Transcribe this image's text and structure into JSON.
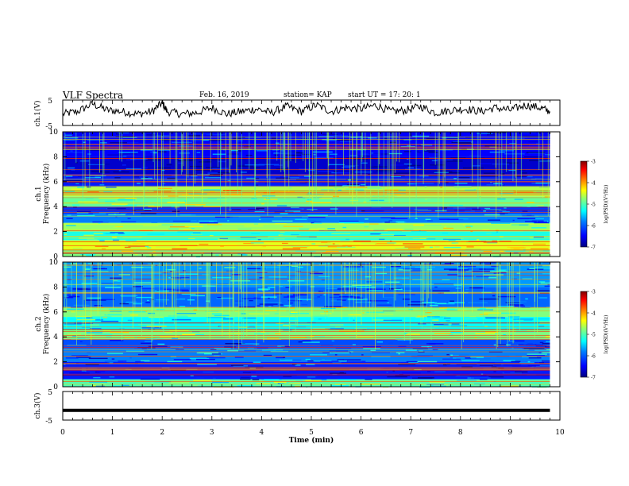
{
  "header": {
    "title": "VLF Spectra",
    "date": "Feb. 16, 2019",
    "station": "station= KAP",
    "start_ut": "start  UT =   17: 20: 1"
  },
  "chart_data": [
    {
      "type": "line",
      "name": "ch1-waveform",
      "ylabel": "ch.1(V)",
      "ylim": [
        -5,
        5
      ],
      "yticks": [
        "5",
        "-5"
      ],
      "xlim": [
        0,
        10
      ],
      "x": [
        0,
        0.3,
        0.6,
        0.9,
        1.2,
        1.5,
        1.8,
        2.0,
        2.1,
        2.4,
        2.7,
        3.0,
        3.3,
        3.6,
        3.9,
        4.2,
        4.5,
        4.8,
        5.1,
        5.4,
        5.7,
        6.0,
        6.3,
        6.6,
        6.9,
        7.2,
        7.5,
        7.8,
        8.1,
        8.4,
        8.7,
        9.0,
        9.3,
        9.6,
        9.8
      ],
      "values": [
        -0.5,
        0.5,
        3.5,
        1.0,
        0.5,
        -0.5,
        0.5,
        4.0,
        0.5,
        -0.5,
        0.0,
        2.0,
        -0.5,
        0.5,
        1.5,
        0.0,
        2.5,
        0.5,
        3.0,
        0.5,
        2.0,
        1.5,
        3.0,
        0.5,
        1.0,
        2.5,
        0.0,
        1.0,
        1.5,
        0.5,
        2.0,
        1.0,
        3.0,
        2.0,
        0.5
      ]
    },
    {
      "type": "heatmap",
      "name": "ch1-spectrogram",
      "ylabel": "ch.1\nFrequency (kHz)",
      "xlim": [
        0,
        10
      ],
      "ylim": [
        0,
        10
      ],
      "yticks": [
        "0",
        "2",
        "4",
        "6",
        "8",
        "10"
      ],
      "colorbar": {
        "label": "log(PSD)(V²/Hz)",
        "range": [
          -7,
          -3
        ],
        "ticks": [
          "-3",
          "-4",
          "-5",
          "-6",
          "-7"
        ]
      },
      "bands_khz": [
        {
          "f0": 0,
          "f1": 0.5,
          "level": -5.0
        },
        {
          "f0": 0.5,
          "f1": 1.3,
          "level": -4.6
        },
        {
          "f0": 1.3,
          "f1": 2.0,
          "level": -5.4
        },
        {
          "f0": 2.0,
          "f1": 2.7,
          "level": -4.9
        },
        {
          "f0": 2.7,
          "f1": 3.4,
          "level": -6.0
        },
        {
          "f0": 3.4,
          "f1": 4.0,
          "level": -6.3
        },
        {
          "f0": 4.0,
          "f1": 4.8,
          "level": -5.1
        },
        {
          "f0": 4.8,
          "f1": 5.6,
          "level": -4.8
        },
        {
          "f0": 5.6,
          "f1": 6.6,
          "level": -6.4
        },
        {
          "f0": 6.6,
          "f1": 8.0,
          "level": -6.7
        },
        {
          "f0": 8.0,
          "f1": 10.0,
          "level": -6.5
        }
      ]
    },
    {
      "type": "heatmap",
      "name": "ch2-spectrogram",
      "ylabel": "ch.2\nFrequency (kHz)",
      "xlim": [
        0,
        10
      ],
      "ylim": [
        0,
        10
      ],
      "yticks": [
        "0",
        "2",
        "4",
        "6",
        "8",
        "10"
      ],
      "colorbar": {
        "label": "log(PSD)(V²/Hz)",
        "range": [
          -7,
          -3
        ],
        "ticks": [
          "-3",
          "-4",
          "-5",
          "-6",
          "-7"
        ]
      },
      "bands_khz": [
        {
          "f0": 0,
          "f1": 0.6,
          "level": -5.2
        },
        {
          "f0": 0.6,
          "f1": 2.0,
          "level": -6.4
        },
        {
          "f0": 2.0,
          "f1": 3.0,
          "level": -6.0
        },
        {
          "f0": 3.0,
          "f1": 3.8,
          "level": -6.2
        },
        {
          "f0": 3.8,
          "f1": 4.6,
          "level": -5.0
        },
        {
          "f0": 4.6,
          "f1": 5.6,
          "level": -5.5
        },
        {
          "f0": 5.6,
          "f1": 6.4,
          "level": -5.0
        },
        {
          "f0": 6.4,
          "f1": 8.0,
          "level": -6.1
        },
        {
          "f0": 8.0,
          "f1": 10.0,
          "level": -5.9
        }
      ]
    },
    {
      "type": "line",
      "name": "ch3-waveform",
      "ylabel": "ch.3(V)",
      "ylim": [
        -5,
        5
      ],
      "yticks": [
        "5",
        "0",
        "-5"
      ],
      "xlim": [
        0,
        10
      ],
      "x": [
        0,
        9.8
      ],
      "values": [
        -1.6,
        -1.6
      ]
    }
  ],
  "xaxis": {
    "label": "Time (min)",
    "ticks": [
      "0",
      "1",
      "2",
      "3",
      "4",
      "5",
      "6",
      "7",
      "8",
      "9",
      "10"
    ]
  },
  "colors": {
    "colormap": [
      "#00007f",
      "#0000ff",
      "#0080ff",
      "#00ffff",
      "#80ff80",
      "#ffff00",
      "#ff8000",
      "#ff0000",
      "#800000"
    ]
  }
}
